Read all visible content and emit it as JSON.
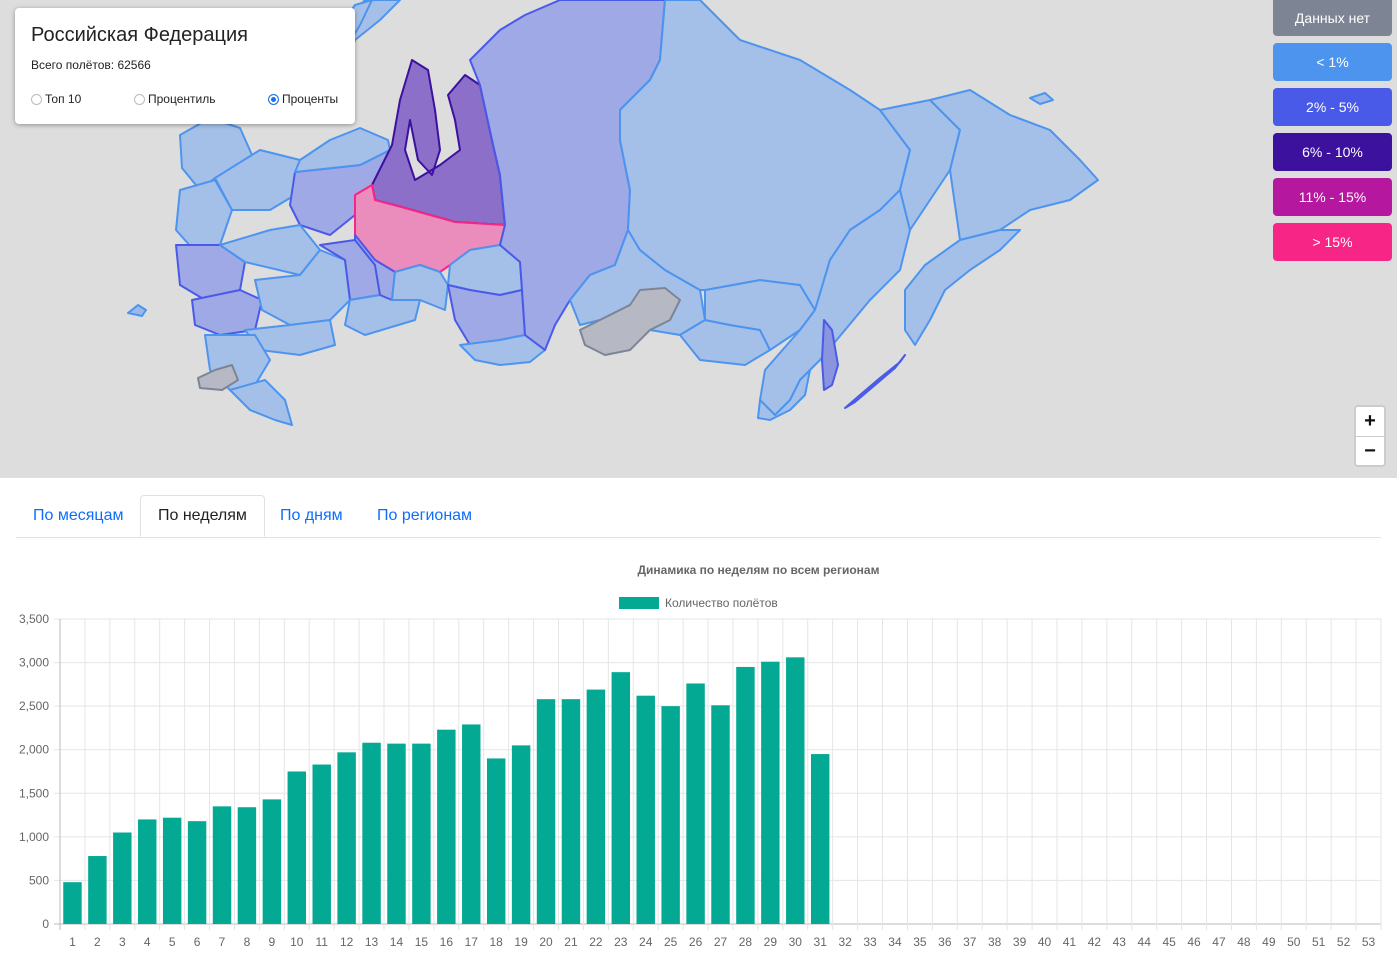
{
  "map": {
    "info": {
      "title": "Российская Федерация",
      "total": "Всего полётов: 62566",
      "options": [
        {
          "label": "Топ 10",
          "checked": false
        },
        {
          "label": "Процентиль",
          "checked": false
        },
        {
          "label": "Проценты",
          "checked": true
        }
      ]
    },
    "legend": [
      {
        "label": "Данных нет",
        "color": "#7d8595"
      },
      {
        "label": "< 1%",
        "color": "#4d94ef"
      },
      {
        "label": "2% - 5%",
        "color": "#4a5ae8"
      },
      {
        "label": "6% - 10%",
        "color": "#3b119e"
      },
      {
        "label": "11% - 15%",
        "color": "#b5179e"
      },
      {
        "label": "> 15%",
        "color": "#f72585"
      }
    ],
    "zoom": {
      "in": "+",
      "out": "−"
    }
  },
  "tabs": [
    {
      "label": "По месяцам",
      "active": false
    },
    {
      "label": "По неделям",
      "active": true
    },
    {
      "label": "По дням",
      "active": false
    },
    {
      "label": "По регионам",
      "active": false
    }
  ],
  "chart_data": {
    "type": "bar",
    "title": "Динамика по неделям по всем регионам",
    "series": [
      {
        "name": "Количество полётов",
        "color": "#04a993",
        "values": [
          480,
          780,
          1050,
          1200,
          1220,
          1180,
          1350,
          1340,
          1430,
          1750,
          1830,
          1970,
          2080,
          2070,
          2070,
          2230,
          2290,
          1900,
          2050,
          2580,
          2580,
          2690,
          2890,
          2620,
          2500,
          2760,
          2510,
          2950,
          3010,
          3060,
          1950,
          0,
          0,
          0,
          0,
          0,
          0,
          0,
          0,
          0,
          0,
          0,
          0,
          0,
          0,
          0,
          0,
          0,
          0,
          0,
          0,
          0,
          0
        ]
      }
    ],
    "categories": [
      "1",
      "2",
      "3",
      "4",
      "5",
      "6",
      "7",
      "8",
      "9",
      "10",
      "11",
      "12",
      "13",
      "14",
      "15",
      "16",
      "17",
      "18",
      "19",
      "20",
      "21",
      "22",
      "23",
      "24",
      "25",
      "26",
      "27",
      "28",
      "29",
      "30",
      "31",
      "32",
      "33",
      "34",
      "35",
      "36",
      "37",
      "38",
      "39",
      "40",
      "41",
      "42",
      "43",
      "44",
      "45",
      "46",
      "47",
      "48",
      "49",
      "50",
      "51",
      "52",
      "53"
    ],
    "ylim": [
      0,
      3500
    ],
    "yticks": [
      "0",
      "500",
      "1,000",
      "1,500",
      "2,000",
      "2,500",
      "3,000",
      "3,500"
    ],
    "ytick_values": [
      0,
      500,
      1000,
      1500,
      2000,
      2500,
      3000,
      3500
    ],
    "grid": true,
    "legend_position": "top"
  }
}
